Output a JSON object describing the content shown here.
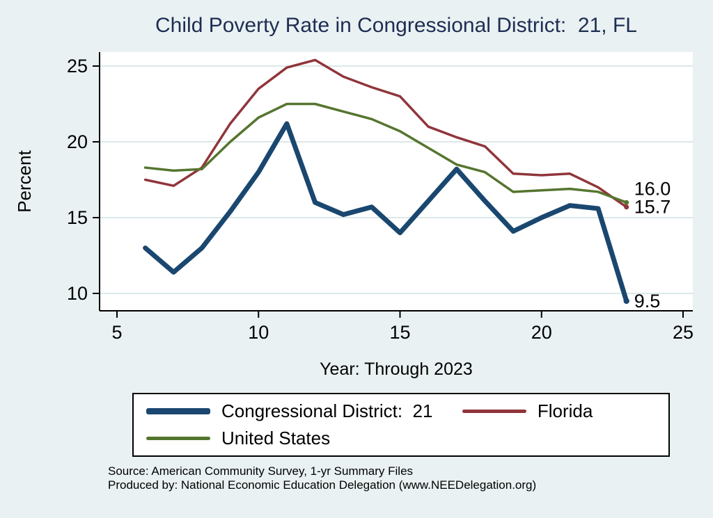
{
  "colors": {
    "page_background": "#e9f1f2",
    "plot_background": "#ffffff",
    "title_text": "#1e2d53",
    "grid": "#cfe0e2",
    "axis": "#000000"
  },
  "chart_data": {
    "type": "line",
    "title": "Child Poverty Rate in Congressional District:  21, FL",
    "xlabel": "Year: Through 2023",
    "ylabel": "Percent",
    "xlim": [
      4.4,
      25.3
    ],
    "ylim": [
      8.9,
      25.9
    ],
    "xticks": [
      5,
      10,
      15,
      20,
      25
    ],
    "yticks": [
      10,
      15,
      20,
      25
    ],
    "grid": "horizontal-only",
    "legend_position": "bottom",
    "x": [
      6,
      7,
      8,
      9,
      10,
      11,
      12,
      13,
      14,
      15,
      16,
      17,
      18,
      19,
      20,
      21,
      22,
      23
    ],
    "series": [
      {
        "name": "Congressional District:  21",
        "color": "#1a476f",
        "width": 7,
        "end_label": "9.5",
        "values": [
          13.0,
          11.4,
          13.0,
          15.4,
          18.0,
          21.2,
          16.0,
          15.2,
          15.7,
          14.0,
          16.1,
          18.2,
          16.1,
          14.1,
          15.0,
          15.8,
          15.6,
          9.5
        ]
      },
      {
        "name": "Florida",
        "color": "#90353b",
        "width": 3.5,
        "end_label": "15.7",
        "values": [
          17.5,
          17.1,
          18.3,
          21.2,
          23.5,
          24.9,
          25.4,
          24.3,
          23.6,
          23.0,
          21.0,
          20.3,
          19.7,
          17.9,
          17.8,
          17.9,
          17.0,
          15.7
        ]
      },
      {
        "name": "United States",
        "color": "#55752f",
        "width": 3.5,
        "end_label": "16.0",
        "values": [
          18.3,
          18.1,
          18.2,
          20.0,
          21.6,
          22.5,
          22.5,
          22.0,
          21.5,
          20.7,
          19.6,
          18.5,
          18.0,
          16.7,
          16.8,
          16.9,
          16.7,
          16.0
        ]
      }
    ],
    "end_value_labels": [
      "16.0",
      "15.7",
      "9.5"
    ]
  },
  "notes": {
    "source": "Source: American Community Survey, 1-yr Summary Files",
    "produced_by": "Produced by: National Economic Education Delegation (www.NEEDelegation.org)"
  }
}
